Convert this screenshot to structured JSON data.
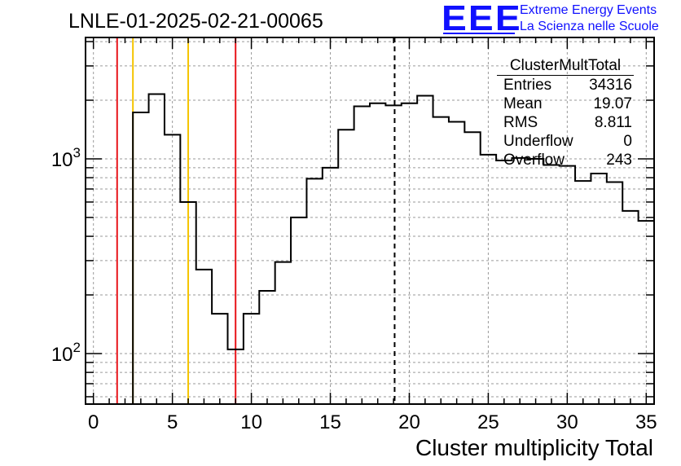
{
  "title": "LNLE-01-2025-02-21-00065",
  "logo": {
    "mark": "EEE",
    "line1": "Extreme Energy Events",
    "line2": "La Scienza nelle Scuole",
    "color": "#1010ff"
  },
  "stats": {
    "title": "ClusterMultTotal",
    "rows": [
      {
        "name": "Entries",
        "value": "34316"
      },
      {
        "name": "Mean",
        "value": "19.07"
      },
      {
        "name": "RMS",
        "value": "8.811"
      },
      {
        "name": "Underflow",
        "value": "0"
      },
      {
        "name": "Overflow",
        "value": "243"
      }
    ]
  },
  "chart_data": {
    "type": "histogram",
    "title": "LNLE-01-2025-02-21-00065",
    "xlabel": "Cluster multiplicity Total",
    "ylabel": "",
    "xlim": [
      -0.5,
      35.5
    ],
    "ylim": [
      55,
      4200
    ],
    "yscale": "log",
    "grid": true,
    "x_ticks": [
      0,
      5,
      10,
      15,
      20,
      25,
      30,
      35
    ],
    "y_tick_labels": [
      {
        "value": 100,
        "label": "10^2"
      },
      {
        "value": 1000,
        "label": "10^3"
      }
    ],
    "bins": {
      "width": 1,
      "centers": [
        0,
        1,
        2,
        3,
        4,
        5,
        6,
        7,
        8,
        9,
        10,
        11,
        12,
        13,
        14,
        15,
        16,
        17,
        18,
        19,
        20,
        21,
        22,
        23,
        24,
        25,
        26,
        27,
        28,
        29,
        30,
        31,
        32,
        33,
        34,
        35
      ],
      "values": [
        0,
        0,
        0,
        1730,
        2150,
        1330,
        600,
        270,
        160,
        105,
        160,
        210,
        295,
        500,
        790,
        900,
        1410,
        1860,
        1930,
        1880,
        1930,
        2110,
        1640,
        1550,
        1370,
        1050,
        980,
        1010,
        1000,
        930,
        920,
        770,
        840,
        760,
        540,
        480
      ]
    },
    "vertical_lines": [
      {
        "x": 1.5,
        "color": "#e8141a",
        "style": "solid"
      },
      {
        "x": 2.5,
        "color": "#f5c400",
        "style": "solid"
      },
      {
        "x": 6.0,
        "color": "#f5c400",
        "style": "solid"
      },
      {
        "x": 9.0,
        "color": "#e8141a",
        "style": "solid"
      },
      {
        "x": 19.07,
        "color": "#000000",
        "style": "dashed"
      }
    ],
    "legend": "stats box top-right"
  }
}
